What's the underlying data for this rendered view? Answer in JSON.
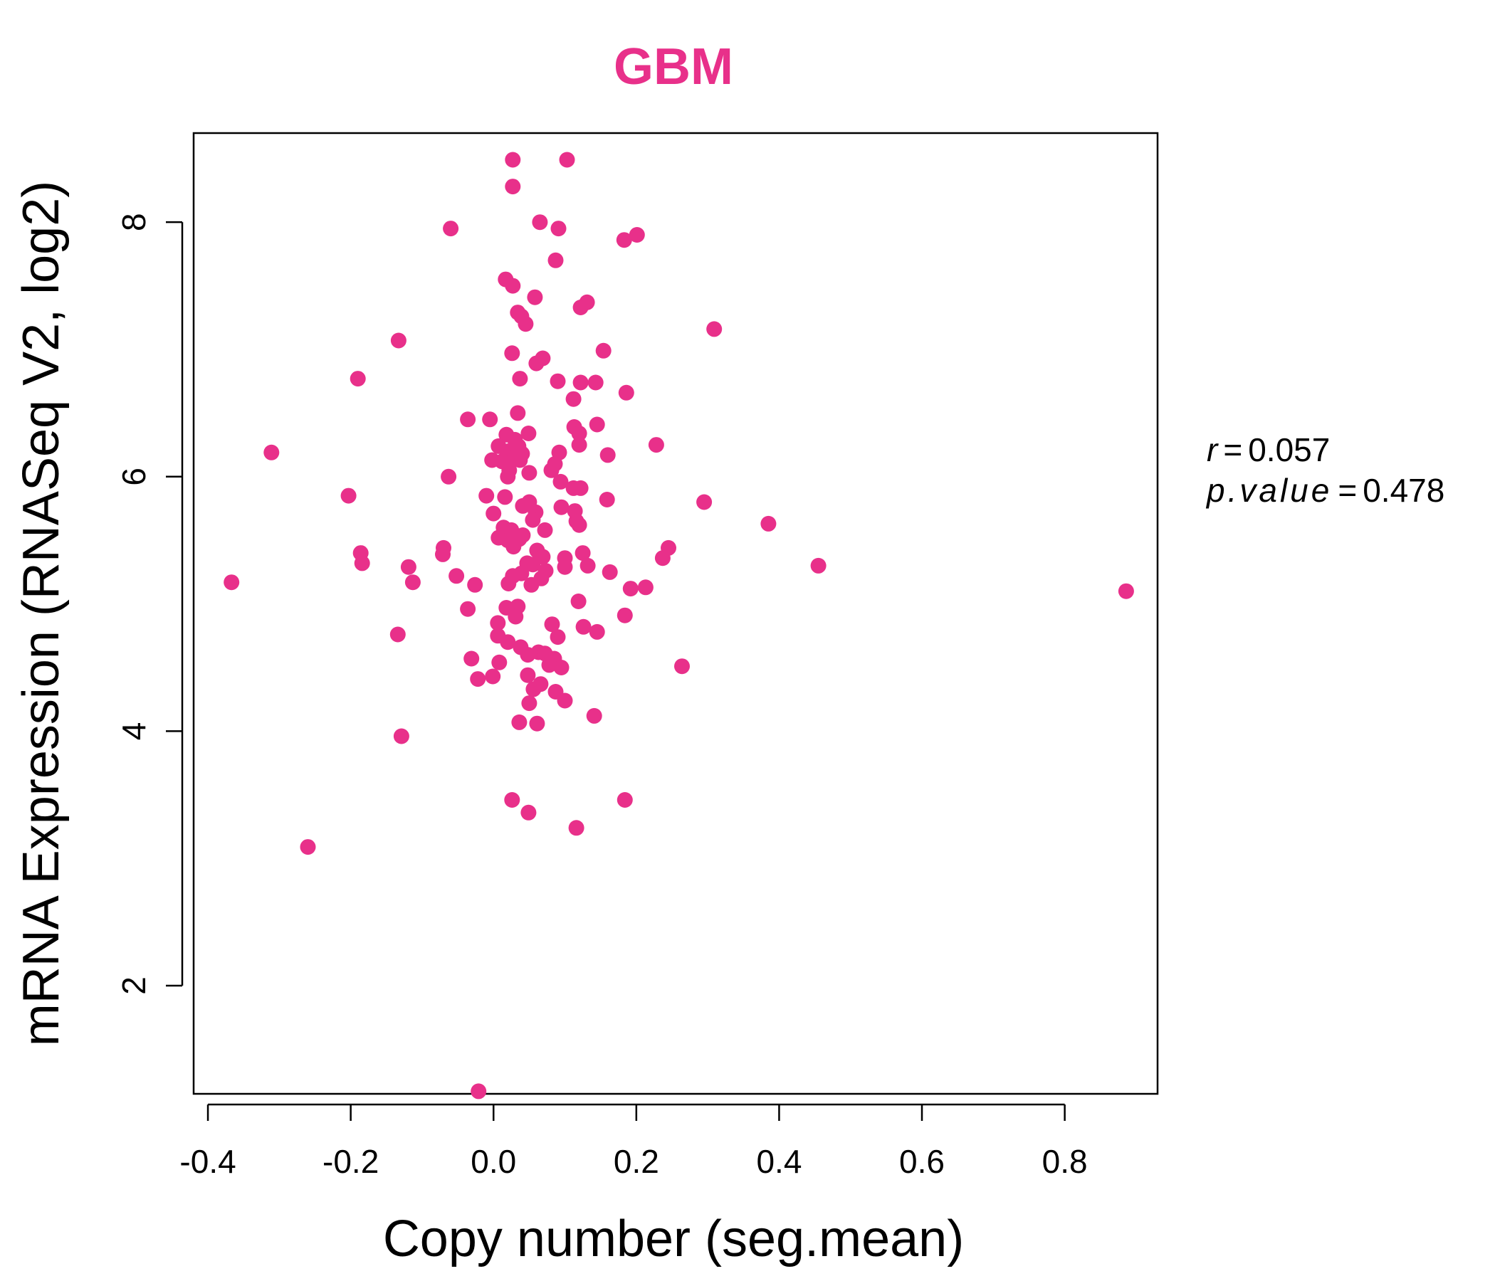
{
  "chart_data": {
    "type": "scatter",
    "title": "GBM",
    "xlabel": "Copy number (seg.mean)",
    "ylabel": "mRNA Expression (RNASeq V2, log2)",
    "xlim": [
      -0.42,
      0.93
    ],
    "ylim": [
      1.15,
      8.7
    ],
    "x_ticks": [
      -0.4,
      -0.2,
      0.0,
      0.2,
      0.4,
      0.6,
      0.8
    ],
    "x_tick_labels": [
      "-0.4",
      "-0.2",
      "0.0",
      "0.2",
      "0.4",
      "0.6",
      "0.8"
    ],
    "y_ticks": [
      2,
      4,
      6,
      8
    ],
    "y_tick_labels": [
      "2",
      "4",
      "6",
      "8"
    ],
    "grid": false,
    "point_color": "#e8308a",
    "title_color": "#e8308a",
    "stats": {
      "r_label": "r",
      "r_value": "0.057",
      "p_label": "p.value",
      "p_value": "0.478"
    },
    "points": [
      [
        0.027,
        8.49
      ],
      [
        0.103,
        8.49
      ],
      [
        0.027,
        8.28
      ],
      [
        0.065,
        8.0
      ],
      [
        0.091,
        7.95
      ],
      [
        -0.06,
        7.95
      ],
      [
        0.201,
        7.9
      ],
      [
        0.183,
        7.86
      ],
      [
        0.087,
        7.7
      ],
      [
        0.017,
        7.55
      ],
      [
        0.027,
        7.5
      ],
      [
        0.058,
        7.41
      ],
      [
        0.131,
        7.37
      ],
      [
        0.122,
        7.33
      ],
      [
        0.034,
        7.29
      ],
      [
        0.039,
        7.26
      ],
      [
        0.045,
        7.2
      ],
      [
        0.309,
        7.16
      ],
      [
        -0.133,
        7.07
      ],
      [
        0.154,
        6.99
      ],
      [
        0.026,
        6.97
      ],
      [
        0.069,
        6.93
      ],
      [
        0.06,
        6.89
      ],
      [
        -0.19,
        6.77
      ],
      [
        0.037,
        6.77
      ],
      [
        0.09,
        6.75
      ],
      [
        0.122,
        6.74
      ],
      [
        0.143,
        6.74
      ],
      [
        0.186,
        6.66
      ],
      [
        0.112,
        6.61
      ],
      [
        0.034,
        6.5
      ],
      [
        -0.036,
        6.45
      ],
      [
        -0.005,
        6.45
      ],
      [
        0.145,
        6.41
      ],
      [
        0.113,
        6.39
      ],
      [
        0.12,
        6.34
      ],
      [
        0.049,
        6.34
      ],
      [
        0.018,
        6.33
      ],
      [
        0.03,
        6.29
      ],
      [
        0.228,
        6.25
      ],
      [
        0.12,
        6.25
      ],
      [
        0.035,
        6.24
      ],
      [
        0.007,
        6.24
      ],
      [
        0.021,
        6.2
      ],
      [
        -0.311,
        6.19
      ],
      [
        0.092,
        6.19
      ],
      [
        0.04,
        6.18
      ],
      [
        0.018,
        6.15
      ],
      [
        0.03,
        6.15
      ],
      [
        0.16,
        6.17
      ],
      [
        0.086,
        6.1
      ],
      [
        0.012,
        6.12
      ],
      [
        -0.002,
        6.13
      ],
      [
        0.037,
        6.13
      ],
      [
        0.022,
        6.05
      ],
      [
        0.081,
        6.05
      ],
      [
        0.05,
        6.03
      ],
      [
        0.02,
        6.0
      ],
      [
        -0.063,
        6.0
      ],
      [
        0.094,
        5.96
      ],
      [
        0.112,
        5.91
      ],
      [
        0.122,
        5.91
      ],
      [
        -0.203,
        5.85
      ],
      [
        -0.01,
        5.85
      ],
      [
        0.016,
        5.84
      ],
      [
        0.159,
        5.82
      ],
      [
        0.295,
        5.8
      ],
      [
        0.05,
        5.8
      ],
      [
        0.041,
        5.77
      ],
      [
        0.095,
        5.76
      ],
      [
        0.114,
        5.73
      ],
      [
        0.059,
        5.72
      ],
      [
        0.0,
        5.71
      ],
      [
        0.055,
        5.66
      ],
      [
        0.116,
        5.65
      ],
      [
        0.12,
        5.62
      ],
      [
        0.385,
        5.63
      ],
      [
        0.014,
        5.6
      ],
      [
        0.025,
        5.58
      ],
      [
        0.072,
        5.58
      ],
      [
        0.041,
        5.54
      ],
      [
        0.007,
        5.52
      ],
      [
        0.036,
        5.51
      ],
      [
        0.02,
        5.5
      ],
      [
        0.028,
        5.45
      ],
      [
        -0.07,
        5.44
      ],
      [
        0.245,
        5.44
      ],
      [
        0.061,
        5.42
      ],
      [
        0.125,
        5.4
      ],
      [
        -0.186,
        5.4
      ],
      [
        -0.071,
        5.39
      ],
      [
        0.069,
        5.37
      ],
      [
        0.1,
        5.36
      ],
      [
        0.237,
        5.36
      ],
      [
        -0.184,
        5.32
      ],
      [
        0.047,
        5.32
      ],
      [
        0.055,
        5.31
      ],
      [
        0.132,
        5.3
      ],
      [
        0.455,
        5.3
      ],
      [
        0.1,
        5.29
      ],
      [
        -0.119,
        5.29
      ],
      [
        0.073,
        5.26
      ],
      [
        0.163,
        5.25
      ],
      [
        0.039,
        5.24
      ],
      [
        0.027,
        5.22
      ],
      [
        -0.052,
        5.22
      ],
      [
        0.067,
        5.2
      ],
      [
        0.021,
        5.16
      ],
      [
        -0.367,
        5.17
      ],
      [
        -0.113,
        5.17
      ],
      [
        0.053,
        5.15
      ],
      [
        -0.026,
        5.15
      ],
      [
        0.213,
        5.13
      ],
      [
        0.192,
        5.12
      ],
      [
        0.886,
        5.1
      ],
      [
        0.119,
        5.02
      ],
      [
        0.034,
        4.98
      ],
      [
        0.018,
        4.97
      ],
      [
        -0.036,
        4.96
      ],
      [
        0.184,
        4.91
      ],
      [
        0.031,
        4.9
      ],
      [
        0.006,
        4.85
      ],
      [
        0.082,
        4.84
      ],
      [
        0.126,
        4.82
      ],
      [
        0.145,
        4.78
      ],
      [
        0.006,
        4.75
      ],
      [
        0.09,
        4.74
      ],
      [
        0.02,
        4.7
      ],
      [
        -0.134,
        4.76
      ],
      [
        0.038,
        4.66
      ],
      [
        0.063,
        4.62
      ],
      [
        0.072,
        4.61
      ],
      [
        0.048,
        4.6
      ],
      [
        -0.031,
        4.57
      ],
      [
        0.085,
        4.57
      ],
      [
        0.008,
        4.54
      ],
      [
        0.078,
        4.52
      ],
      [
        0.095,
        4.5
      ],
      [
        0.264,
        4.51
      ],
      [
        0.048,
        4.44
      ],
      [
        -0.001,
        4.43
      ],
      [
        -0.022,
        4.41
      ],
      [
        0.066,
        4.37
      ],
      [
        0.056,
        4.33
      ],
      [
        0.087,
        4.31
      ],
      [
        0.05,
        4.22
      ],
      [
        0.1,
        4.24
      ],
      [
        0.141,
        4.12
      ],
      [
        0.036,
        4.07
      ],
      [
        0.061,
        4.06
      ],
      [
        -0.129,
        3.96
      ],
      [
        0.026,
        3.46
      ],
      [
        0.184,
        3.46
      ],
      [
        0.049,
        3.36
      ],
      [
        0.116,
        3.24
      ],
      [
        -0.26,
        3.09
      ],
      [
        -0.021,
        1.17
      ]
    ]
  }
}
